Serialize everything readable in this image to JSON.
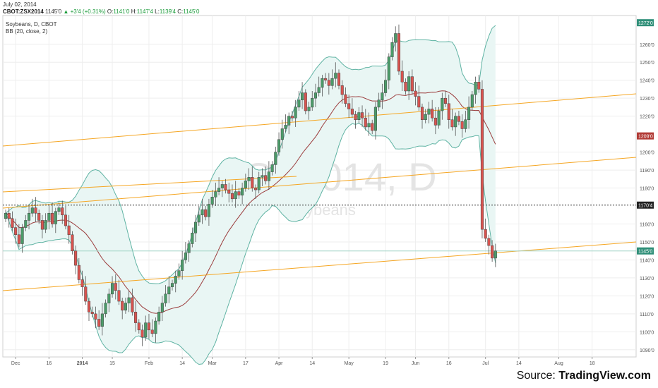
{
  "header": {
    "date": "July 02, 2014",
    "symbol": "CBOT:ZSX2014",
    "last": "1145'0",
    "change": "+3'4 (+0.31%)",
    "o_label": "O:",
    "o_value": "1141'0",
    "h_label": "H:",
    "h_value": "1147'4",
    "l_label": "L:",
    "l_value": "1139'4",
    "c_label": "C:",
    "c_value": "1145'0"
  },
  "legend": {
    "line1": "Soybeans, D, CBOT",
    "line2": "BB (20, close, 2)"
  },
  "watermark": {
    "ticker": "ZSX2014, D",
    "name": "Soybeans"
  },
  "source": {
    "prefix": "Source: ",
    "brand": "TradingView.com"
  },
  "colors": {
    "up": "#4b9c69",
    "down": "#d9534f",
    "bb_band": "#5fb3a3",
    "bb_fill": "#e9f6f4",
    "bb_mid": "#9b3b3b",
    "trend": "#f5a623",
    "grid": "#eeeeee",
    "price_tag": "#2f8f78",
    "down_tag": "#b13a35",
    "dotted_tag": "#222222"
  },
  "chart_data": {
    "type": "candlestick",
    "title": "Soybeans, D, CBOT",
    "indicator": "BB (20, close, 2)",
    "ylim": [
      1086,
      1276
    ],
    "y_ticks": [
      {
        "v": 1090,
        "label": "1090'0"
      },
      {
        "v": 1100,
        "label": "1100'0"
      },
      {
        "v": 1110,
        "label": "1110'0"
      },
      {
        "v": 1120,
        "label": "1120'0"
      },
      {
        "v": 1130,
        "label": "1130'0"
      },
      {
        "v": 1140,
        "label": "1140'0"
      },
      {
        "v": 1150,
        "label": "1150'0"
      },
      {
        "v": 1160,
        "label": "1160'0"
      },
      {
        "v": 1180,
        "label": "1180'0"
      },
      {
        "v": 1190,
        "label": "1190'0"
      },
      {
        "v": 1200,
        "label": "1200'0"
      },
      {
        "v": 1220,
        "label": "1220'0"
      },
      {
        "v": 1230,
        "label": "1230'0"
      },
      {
        "v": 1240,
        "label": "1240'0"
      },
      {
        "v": 1250,
        "label": "1250'0"
      },
      {
        "v": 1260,
        "label": "1260'0"
      }
    ],
    "price_tags": [
      {
        "v": 1272,
        "label": "1272'0",
        "style": "teal"
      },
      {
        "v": 1209,
        "label": "1209'0",
        "style": "red"
      },
      {
        "v": 1170.5,
        "label": "1170'4",
        "style": "dark"
      },
      {
        "v": 1145,
        "label": "1145'0",
        "style": "teal"
      }
    ],
    "x_ticks": [
      {
        "i": 3,
        "label": "Dec"
      },
      {
        "i": 13,
        "label": "16"
      },
      {
        "i": 23,
        "label": "2014"
      },
      {
        "i": 32,
        "label": "15"
      },
      {
        "i": 43,
        "label": "Feb"
      },
      {
        "i": 53,
        "label": "14"
      },
      {
        "i": 62,
        "label": "Mar"
      },
      {
        "i": 72,
        "label": "17"
      },
      {
        "i": 82,
        "label": "Apr"
      },
      {
        "i": 92,
        "label": "14"
      },
      {
        "i": 103,
        "label": "May"
      },
      {
        "i": 114,
        "label": "19"
      },
      {
        "i": 123,
        "label": "Jun"
      },
      {
        "i": 133,
        "label": "16"
      },
      {
        "i": 144,
        "label": "Jul"
      },
      {
        "i": 154,
        "label": "14"
      },
      {
        "i": 166,
        "label": "Aug"
      },
      {
        "i": 176,
        "label": "18"
      }
    ],
    "x_count": 188,
    "dotted_line": 1170.5,
    "last_line": 1145,
    "closes": [
      1166,
      1163,
      1158,
      1154,
      1149,
      1158,
      1162,
      1166,
      1169,
      1166,
      1162,
      1157,
      1162,
      1166,
      1160,
      1167,
      1169,
      1165,
      1159,
      1154,
      1145,
      1137,
      1129,
      1125,
      1117,
      1111,
      1110,
      1107,
      1103,
      1110,
      1116,
      1121,
      1127,
      1123,
      1117,
      1112,
      1116,
      1119,
      1111,
      1105,
      1101,
      1097,
      1105,
      1101,
      1099,
      1106,
      1111,
      1116,
      1121,
      1125,
      1127,
      1131,
      1134,
      1140,
      1144,
      1149,
      1155,
      1161,
      1165,
      1168,
      1164,
      1171,
      1175,
      1178,
      1180,
      1182,
      1179,
      1177,
      1174,
      1178,
      1176,
      1180,
      1184,
      1186,
      1180,
      1179,
      1186,
      1187,
      1184,
      1189,
      1193,
      1200,
      1207,
      1213,
      1215,
      1220,
      1219,
      1225,
      1229,
      1233,
      1223,
      1225,
      1230,
      1233,
      1236,
      1241,
      1240,
      1237,
      1241,
      1244,
      1237,
      1232,
      1227,
      1224,
      1221,
      1218,
      1222,
      1219,
      1214,
      1216,
      1212,
      1225,
      1229,
      1233,
      1240,
      1253,
      1261,
      1266,
      1245,
      1239,
      1234,
      1242,
      1234,
      1231,
      1225,
      1218,
      1221,
      1224,
      1219,
      1215,
      1223,
      1230,
      1227,
      1218,
      1214,
      1220,
      1217,
      1213,
      1218,
      1225,
      1232,
      1239,
      1235,
      1157,
      1152,
      1148,
      1141,
      1145
    ]
  }
}
